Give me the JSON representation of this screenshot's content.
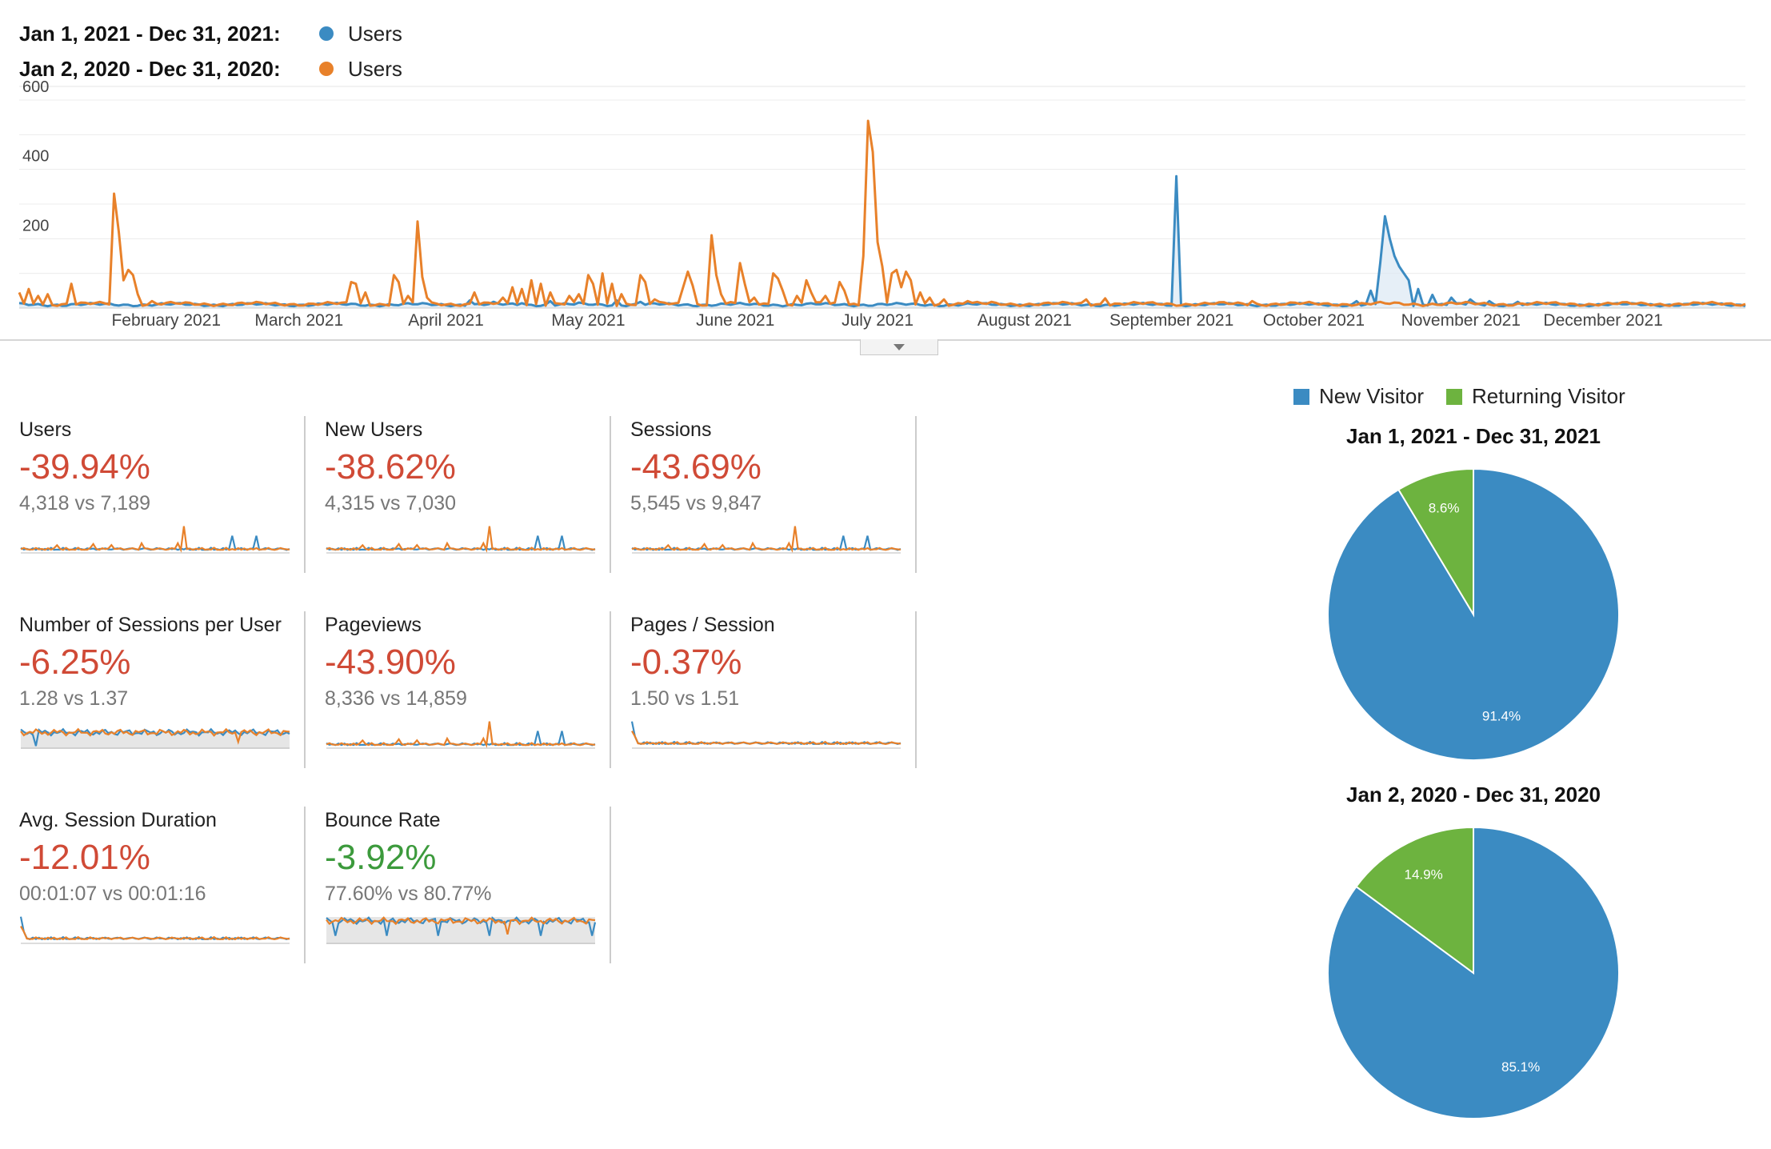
{
  "legend": [
    {
      "range": "Jan 1, 2021 - Dec 31, 2021:",
      "series": "Users",
      "color": "#3b8bc2"
    },
    {
      "range": "Jan 2, 2020 - Dec 31, 2020:",
      "series": "Users",
      "color": "#e8812a"
    }
  ],
  "chart_data": [
    {
      "type": "line",
      "title": "",
      "y_ticks": [
        "600",
        "400",
        "200"
      ],
      "ylim": [
        0,
        600
      ],
      "x_tick_labels": [
        "February 2021",
        "March 2021",
        "April 2021",
        "May 2021",
        "June 2021",
        "July 2021",
        "August 2021",
        "September 2021",
        "October 2021",
        "November 2021",
        "December 2021"
      ],
      "x_tick_days": [
        31,
        59,
        90,
        120,
        151,
        181,
        212,
        243,
        273,
        304,
        334
      ],
      "grid": true,
      "series": [
        {
          "name": "Jan 1, 2021 - Dec 31, 2021: Users",
          "color": "#3b8bc2",
          "fill": true,
          "baseline": 10,
          "peaks": [
            [
              95,
              22
            ],
            [
              100,
              18
            ],
            [
              106,
              14
            ],
            [
              112,
              20
            ],
            [
              118,
              16
            ],
            [
              126,
              22
            ],
            [
              131,
              18
            ],
            [
              244,
              380
            ],
            [
              282,
              20
            ],
            [
              285,
              50
            ],
            [
              287,
              130
            ],
            [
              288,
              265
            ],
            [
              289,
              200
            ],
            [
              290,
              150
            ],
            [
              291,
              120
            ],
            [
              292,
              100
            ],
            [
              293,
              80
            ],
            [
              295,
              55
            ],
            [
              298,
              38
            ],
            [
              302,
              30
            ],
            [
              306,
              25
            ],
            [
              310,
              20
            ],
            [
              316,
              18
            ]
          ]
        },
        {
          "name": "Jan 2, 2020 - Dec 31, 2020: Users",
          "color": "#e8812a",
          "fill": false,
          "baseline": 12,
          "peaks": [
            [
              0,
              45
            ],
            [
              2,
              55
            ],
            [
              4,
              35
            ],
            [
              6,
              40
            ],
            [
              11,
              70
            ],
            [
              20,
              330
            ],
            [
              21,
              220
            ],
            [
              22,
              80
            ],
            [
              23,
              110
            ],
            [
              24,
              95
            ],
            [
              25,
              40
            ],
            [
              28,
              20
            ],
            [
              70,
              75
            ],
            [
              71,
              70
            ],
            [
              73,
              45
            ],
            [
              79,
              95
            ],
            [
              80,
              75
            ],
            [
              82,
              35
            ],
            [
              84,
              250
            ],
            [
              85,
              90
            ],
            [
              86,
              30
            ],
            [
              96,
              45
            ],
            [
              102,
              30
            ],
            [
              104,
              60
            ],
            [
              106,
              55
            ],
            [
              108,
              80
            ],
            [
              110,
              70
            ],
            [
              112,
              45
            ],
            [
              116,
              35
            ],
            [
              118,
              40
            ],
            [
              120,
              95
            ],
            [
              121,
              70
            ],
            [
              123,
              100
            ],
            [
              125,
              70
            ],
            [
              127,
              40
            ],
            [
              131,
              95
            ],
            [
              132,
              75
            ],
            [
              134,
              25
            ],
            [
              140,
              60
            ],
            [
              141,
              105
            ],
            [
              142,
              65
            ],
            [
              146,
              210
            ],
            [
              147,
              95
            ],
            [
              148,
              40
            ],
            [
              152,
              130
            ],
            [
              153,
              70
            ],
            [
              155,
              30
            ],
            [
              159,
              100
            ],
            [
              160,
              85
            ],
            [
              161,
              50
            ],
            [
              164,
              35
            ],
            [
              166,
              80
            ],
            [
              167,
              45
            ],
            [
              170,
              35
            ],
            [
              173,
              75
            ],
            [
              174,
              50
            ],
            [
              178,
              150
            ],
            [
              179,
              540
            ],
            [
              180,
              450
            ],
            [
              181,
              190
            ],
            [
              182,
              120
            ],
            [
              184,
              100
            ],
            [
              185,
              110
            ],
            [
              186,
              60
            ],
            [
              187,
              105
            ],
            [
              188,
              80
            ],
            [
              190,
              45
            ],
            [
              192,
              30
            ],
            [
              195,
              25
            ],
            [
              200,
              20
            ],
            [
              205,
              18
            ],
            [
              225,
              25
            ],
            [
              229,
              28
            ],
            [
              260,
              20
            ]
          ]
        }
      ]
    },
    {
      "type": "pie",
      "title": "Jan 1, 2021 - Dec 31, 2021",
      "categories": [
        "New Visitor",
        "Returning Visitor"
      ],
      "values": [
        91.4,
        8.6
      ],
      "labels": [
        "91.4%",
        "8.6%"
      ],
      "colors": [
        "#3b8bc2",
        "#6db33f"
      ]
    },
    {
      "type": "pie",
      "title": "Jan 2, 2020 - Dec 31, 2020",
      "categories": [
        "New Visitor",
        "Returning Visitor"
      ],
      "values": [
        85.1,
        14.9
      ],
      "labels": [
        "85.1%",
        "14.9%"
      ],
      "colors": [
        "#3b8bc2",
        "#6db33f"
      ]
    }
  ],
  "pie_legend": [
    {
      "label": "New Visitor",
      "color": "#3b8bc2"
    },
    {
      "label": "Returning Visitor",
      "color": "#6db33f"
    }
  ],
  "metrics": [
    {
      "name": "Users",
      "change": "-39.94%",
      "direction": "negative",
      "compare": "4,318 vs 7,189",
      "spark": "spiky"
    },
    {
      "name": "New Users",
      "change": "-38.62%",
      "direction": "negative",
      "compare": "4,315 vs 7,030",
      "spark": "spiky"
    },
    {
      "name": "Sessions",
      "change": "-43.69%",
      "direction": "negative",
      "compare": "5,545 vs 9,847",
      "spark": "spiky"
    },
    {
      "name": "Number of Sessions per User",
      "change": "-6.25%",
      "direction": "negative",
      "compare": "1.28 vs 1.37",
      "spark": "band"
    },
    {
      "name": "Pageviews",
      "change": "-43.90%",
      "direction": "negative",
      "compare": "8,336 vs 14,859",
      "spark": "spiky"
    },
    {
      "name": "Pages / Session",
      "change": "-0.37%",
      "direction": "negative",
      "compare": "1.50 vs 1.51",
      "spark": "low"
    },
    {
      "name": "Avg. Session Duration",
      "change": "-12.01%",
      "direction": "negative",
      "compare": "00:01:07 vs 00:01:16",
      "spark": "low"
    },
    {
      "name": "Bounce Rate",
      "change": "-3.92%",
      "direction": "positive",
      "compare": "77.60% vs 80.77%",
      "spark": "high"
    }
  ]
}
